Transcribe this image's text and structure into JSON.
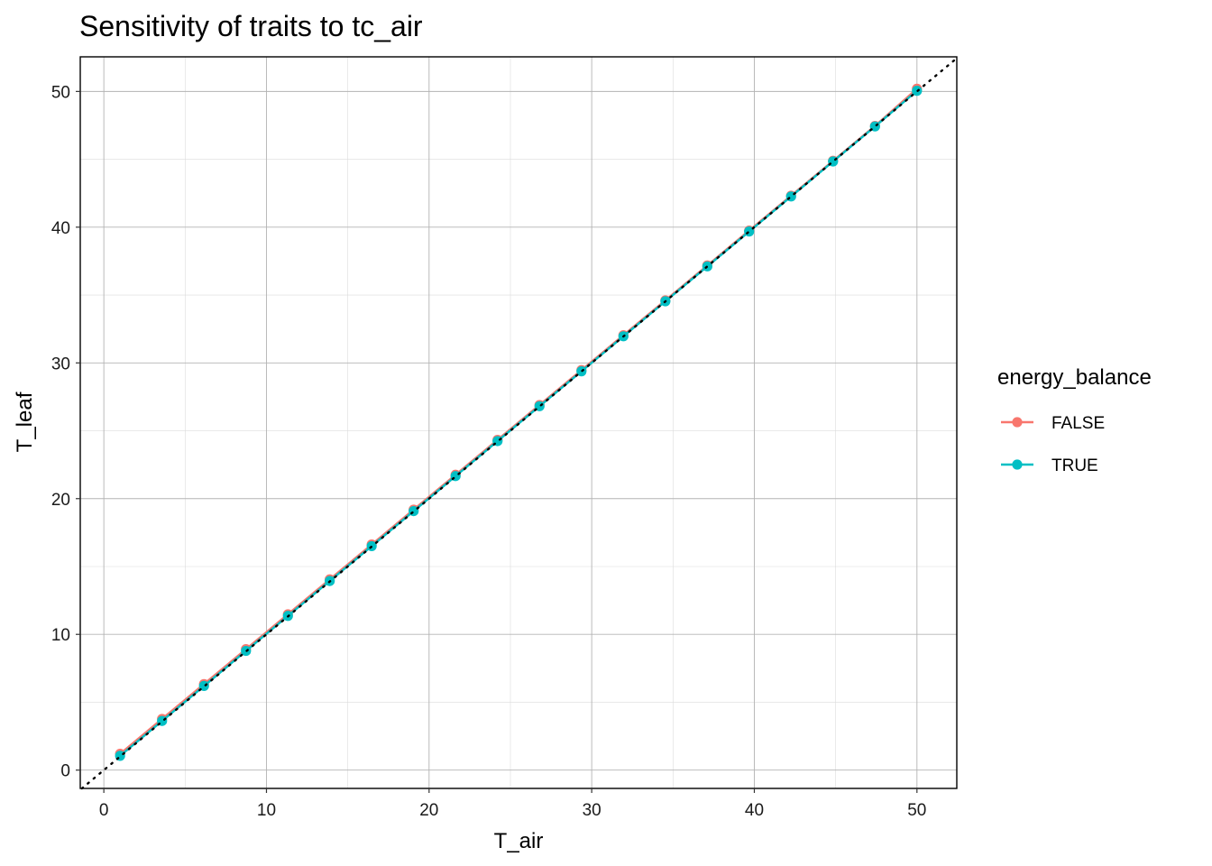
{
  "chart_data": {
    "type": "line",
    "title": "Sensitivity of traits to tc_air",
    "xlabel": "T_air",
    "ylabel": "T_leaf",
    "xlim": [
      -1.45,
      52.45
    ],
    "ylim": [
      -1.35,
      52.55
    ],
    "xticks": [
      0,
      10,
      20,
      30,
      40,
      50
    ],
    "yticks": [
      0,
      10,
      20,
      30,
      40,
      50
    ],
    "grid": "major and minor",
    "reference_line": {
      "style": "dotted",
      "slope": 1,
      "intercept": 0,
      "color": "#000000"
    },
    "legend": {
      "title": "energy_balance",
      "placement": "right"
    },
    "x": [
      1.0,
      3.58,
      6.16,
      8.74,
      11.32,
      13.89,
      16.47,
      19.05,
      21.63,
      24.21,
      26.79,
      29.37,
      31.95,
      34.53,
      37.11,
      39.68,
      42.26,
      44.84,
      47.42,
      50.0
    ],
    "series": [
      {
        "name": "FALSE",
        "color": "#F8766D",
        "values": [
          1.2,
          3.77,
          6.34,
          8.91,
          11.48,
          14.05,
          16.62,
          19.19,
          21.76,
          24.33,
          26.9,
          29.47,
          32.04,
          34.61,
          37.18,
          39.75,
          42.32,
          44.89,
          47.46,
          50.2
        ]
      },
      {
        "name": "TRUE",
        "color": "#00BFC4",
        "values": [
          1.05,
          3.62,
          6.2,
          8.78,
          11.36,
          13.93,
          16.5,
          19.08,
          21.66,
          24.24,
          26.81,
          29.38,
          31.96,
          34.54,
          37.11,
          39.68,
          42.26,
          44.84,
          47.42,
          50.05
        ]
      }
    ]
  }
}
